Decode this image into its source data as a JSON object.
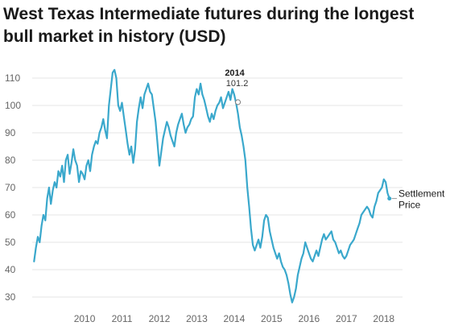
{
  "chart_data": {
    "type": "line",
    "title": "West Texas Intermediate futures during the longest bull market in history (USD)",
    "xlabel": "",
    "ylabel": "",
    "ylim": [
      25,
      115
    ],
    "xlim": [
      2009.1,
      2019.0
    ],
    "yticks": [
      30,
      40,
      50,
      60,
      70,
      80,
      90,
      100,
      110
    ],
    "xticks": [
      2010,
      2011,
      2012,
      2013,
      2014,
      2015,
      2016,
      2017,
      2018
    ],
    "grid": true,
    "legend": "none",
    "series": [
      {
        "name": "Settlement Price",
        "color": "#3aa8cc",
        "x": [
          2009.15,
          2009.2,
          2009.25,
          2009.3,
          2009.35,
          2009.4,
          2009.45,
          2009.5,
          2009.55,
          2009.6,
          2009.65,
          2009.7,
          2009.75,
          2009.8,
          2009.85,
          2009.9,
          2009.95,
          2010.0,
          2010.05,
          2010.1,
          2010.15,
          2010.2,
          2010.25,
          2010.3,
          2010.35,
          2010.4,
          2010.45,
          2010.5,
          2010.55,
          2010.6,
          2010.65,
          2010.7,
          2010.75,
          2010.8,
          2010.85,
          2010.9,
          2010.95,
          2011.0,
          2011.05,
          2011.1,
          2011.15,
          2011.2,
          2011.25,
          2011.3,
          2011.35,
          2011.4,
          2011.45,
          2011.5,
          2011.55,
          2011.6,
          2011.65,
          2011.7,
          2011.75,
          2011.8,
          2011.85,
          2011.9,
          2011.95,
          2012.0,
          2012.05,
          2012.1,
          2012.15,
          2012.2,
          2012.25,
          2012.3,
          2012.35,
          2012.4,
          2012.45,
          2012.5,
          2012.55,
          2012.6,
          2012.65,
          2012.7,
          2012.75,
          2012.8,
          2012.85,
          2012.9,
          2012.95,
          2013.0,
          2013.05,
          2013.1,
          2013.15,
          2013.2,
          2013.25,
          2013.3,
          2013.35,
          2013.4,
          2013.45,
          2013.5,
          2013.55,
          2013.6,
          2013.65,
          2013.7,
          2013.75,
          2013.8,
          2013.85,
          2013.9,
          2013.95,
          2014.0,
          2014.05,
          2014.1,
          2014.15,
          2014.2,
          2014.25,
          2014.3,
          2014.35,
          2014.4,
          2014.45,
          2014.5,
          2014.55,
          2014.6,
          2014.65,
          2014.7,
          2014.75,
          2014.8,
          2014.85,
          2014.9,
          2014.95,
          2015.0,
          2015.05,
          2015.1,
          2015.15,
          2015.2,
          2015.25,
          2015.3,
          2015.35,
          2015.4,
          2015.45,
          2015.5,
          2015.55,
          2015.6,
          2015.65,
          2015.7,
          2015.75,
          2015.8,
          2015.85,
          2015.9,
          2015.95,
          2016.0,
          2016.05,
          2016.1,
          2016.15,
          2016.2,
          2016.25,
          2016.3,
          2016.35,
          2016.4,
          2016.45,
          2016.5,
          2016.55,
          2016.6,
          2016.65,
          2016.7,
          2016.75,
          2016.8,
          2016.85,
          2016.9,
          2016.95,
          2017.0,
          2017.05,
          2017.1,
          2017.15,
          2017.2,
          2017.25,
          2017.3,
          2017.35,
          2017.4,
          2017.45,
          2017.5,
          2017.55,
          2017.6,
          2017.65,
          2017.7,
          2017.75,
          2017.8,
          2017.85,
          2017.9,
          2017.95,
          2018.0,
          2018.05,
          2018.1,
          2018.15,
          2018.2,
          2018.25,
          2018.3,
          2018.35,
          2018.4,
          2018.45,
          2018.5,
          2018.55,
          2018.6,
          2018.65
        ],
        "values": [
          43,
          48,
          52,
          50,
          56,
          60,
          58,
          66,
          70,
          64,
          69,
          72,
          70,
          76,
          74,
          78,
          72,
          80,
          82,
          75,
          79,
          84,
          80,
          78,
          72,
          76,
          75,
          73,
          78,
          80,
          76,
          82,
          85,
          87,
          86,
          90,
          92,
          95,
          91,
          88,
          100,
          106,
          112,
          113,
          110,
          100,
          98,
          101,
          96,
          91,
          86,
          82,
          85,
          79,
          84,
          94,
          99,
          103,
          99,
          104,
          106,
          108,
          105,
          104,
          99,
          94,
          86,
          78,
          83,
          88,
          91,
          94,
          92,
          89,
          87,
          85,
          90,
          93,
          95,
          97,
          93,
          90,
          92,
          93,
          95,
          96,
          103,
          106,
          104,
          108,
          104,
          102,
          99,
          96,
          94,
          97,
          95,
          98,
          100,
          101,
          103,
          99,
          101,
          103,
          105,
          102,
          106,
          104,
          101,
          97,
          92,
          89,
          85,
          80,
          70,
          63,
          55,
          49,
          47,
          49,
          51,
          48,
          52,
          58,
          60,
          59,
          54,
          51,
          48,
          46,
          44,
          46,
          43,
          41,
          40,
          38,
          35,
          31,
          28,
          30,
          33,
          38,
          41,
          44,
          46,
          50,
          48,
          46,
          44,
          43,
          45,
          47,
          45,
          48,
          51,
          53,
          51,
          52,
          53,
          54,
          51,
          50,
          48,
          46,
          47,
          45,
          44,
          45,
          47,
          49,
          50,
          51,
          53,
          55,
          57,
          60,
          61,
          62,
          63,
          62,
          60,
          59,
          63,
          65,
          68,
          69,
          70,
          73,
          72,
          68,
          66
        ]
      }
    ],
    "annotation": {
      "year": "2014",
      "value": "101.2",
      "x": 2014.6,
      "y": 101.2
    },
    "series_label": [
      "Settlement",
      "Price"
    ]
  }
}
